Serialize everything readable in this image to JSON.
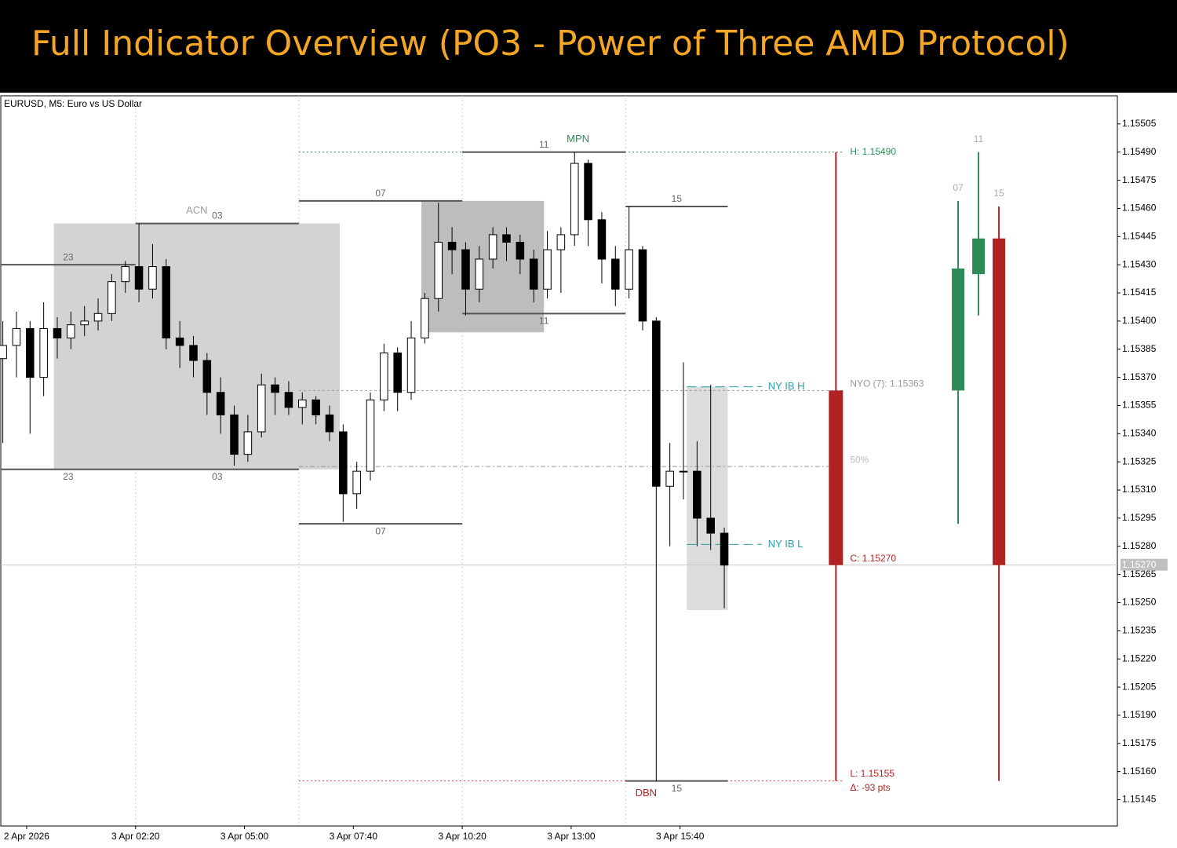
{
  "header": {
    "title": "Full Indicator Overview (PO3 - Power of Three AMD Protocol)"
  },
  "chart_data": {
    "type": "candlestick",
    "title": "EURUSD, M5:  Euro vs US Dollar",
    "x": [
      -39,
      -35,
      -31,
      -27,
      -23,
      -19,
      -15,
      -11,
      -7,
      -3,
      1,
      5,
      9,
      13,
      17,
      21,
      25,
      29,
      33,
      37,
      41,
      45,
      49,
      53,
      57,
      61,
      65,
      69,
      73,
      77,
      81,
      85,
      89,
      93,
      97,
      101,
      105,
      109,
      113,
      117,
      121,
      125,
      129,
      133,
      137,
      141,
      145,
      149,
      153,
      157,
      161,
      165,
      169,
      173
    ],
    "open": [
      1.1538,
      1.15387,
      1.15396,
      1.1537,
      1.15396,
      1.15391,
      1.15398,
      1.154,
      1.15404,
      1.15421,
      1.15429,
      1.15417,
      1.15429,
      1.15391,
      1.15387,
      1.15379,
      1.15362,
      1.1535,
      1.15329,
      1.15341,
      1.15366,
      1.15362,
      1.15354,
      1.15358,
      1.1535,
      1.15341,
      1.15308,
      1.1532,
      1.15358,
      1.15383,
      1.15362,
      1.15391,
      1.15412,
      1.15442,
      1.15438,
      1.15417,
      1.15433,
      1.15446,
      1.15442,
      1.15433,
      1.15417,
      1.15438,
      1.15446,
      1.15484,
      1.15454,
      1.15433,
      1.15417,
      1.15438,
      1.154,
      1.15312,
      1.1532,
      1.1532,
      1.15295,
      1.15287
    ],
    "high": [
      1.154,
      1.15405,
      1.154,
      1.1541,
      1.15402,
      1.15405,
      1.15408,
      1.15412,
      1.15425,
      1.15432,
      1.15452,
      1.15441,
      1.15433,
      1.154,
      1.15392,
      1.15383,
      1.1537,
      1.15355,
      1.1535,
      1.15372,
      1.1537,
      1.15368,
      1.15362,
      1.1536,
      1.15355,
      1.15345,
      1.15325,
      1.15362,
      1.15388,
      1.15386,
      1.154,
      1.15415,
      1.15463,
      1.1545,
      1.15442,
      1.1544,
      1.1545,
      1.1545,
      1.15446,
      1.15438,
      1.15448,
      1.1545,
      1.1549,
      1.15486,
      1.15458,
      1.1544,
      1.15461,
      1.1544,
      1.15402,
      1.15335,
      1.15378,
      1.15336,
      1.15366,
      1.1529
    ],
    "low": [
      1.15335,
      1.1537,
      1.1534,
      1.1536,
      1.1538,
      1.15385,
      1.15392,
      1.15395,
      1.154,
      1.15415,
      1.1541,
      1.15412,
      1.15385,
      1.15375,
      1.1537,
      1.1535,
      1.1534,
      1.15323,
      1.15325,
      1.15338,
      1.1535,
      1.1535,
      1.15345,
      1.15345,
      1.15336,
      1.15293,
      1.153,
      1.15315,
      1.15352,
      1.15352,
      1.15358,
      1.15388,
      1.15405,
      1.15425,
      1.15403,
      1.1541,
      1.15428,
      1.15432,
      1.15425,
      1.1541,
      1.15412,
      1.15415,
      1.1544,
      1.1544,
      1.1542,
      1.15408,
      1.15412,
      1.15395,
      1.15155,
      1.1528,
      1.15305,
      1.1528,
      1.15278,
      1.15247
    ],
    "close": [
      1.15387,
      1.15396,
      1.1537,
      1.15396,
      1.15391,
      1.15398,
      1.154,
      1.15404,
      1.15421,
      1.15429,
      1.15417,
      1.15429,
      1.15391,
      1.15387,
      1.15379,
      1.15362,
      1.1535,
      1.15329,
      1.15341,
      1.15366,
      1.15362,
      1.15354,
      1.15358,
      1.1535,
      1.15341,
      1.15308,
      1.1532,
      1.15358,
      1.15383,
      1.15362,
      1.15391,
      1.15412,
      1.15442,
      1.15438,
      1.15417,
      1.15433,
      1.15446,
      1.15442,
      1.15433,
      1.15417,
      1.15438,
      1.15446,
      1.15484,
      1.15454,
      1.15433,
      1.15417,
      1.15438,
      1.154,
      1.15312,
      1.1532,
      1.1532,
      1.15295,
      1.15287,
      1.1527
    ],
    "up_color": "#ffffff",
    "down_color": "#000000",
    "xlim": [
      -39.6,
      288.5
    ],
    "xticks": [
      {
        "value": -32,
        "label": "2 Apr 2026"
      },
      {
        "value": 0,
        "label": "3 Apr 02:20"
      },
      {
        "value": 32,
        "label": "3 Apr 05:00"
      },
      {
        "value": 64,
        "label": "3 Apr 07:40"
      },
      {
        "value": 96,
        "label": "3 Apr 10:20"
      },
      {
        "value": 128,
        "label": "3 Apr 13:00"
      },
      {
        "value": 160,
        "label": "3 Apr 15:40"
      }
    ],
    "ylim": [
      1.15131,
      1.1552
    ],
    "yticks": [
      1.15505,
      {
        "value": 1.1549,
        "label": "1.15490"
      },
      1.15475,
      {
        "value": 1.1546,
        "label": "1.15460"
      },
      1.15445,
      {
        "value": 1.1543,
        "label": "1.15430"
      },
      1.15415,
      {
        "value": 1.154,
        "label": "1.15400"
      },
      1.15385,
      {
        "value": 1.1537,
        "label": "1.15370"
      },
      1.15355,
      {
        "value": 1.1534,
        "label": "1.15340"
      },
      1.15325,
      {
        "value": 1.1531,
        "label": "1.15310"
      },
      1.15295,
      {
        "value": 1.1528,
        "label": "1.15280"
      },
      1.15265,
      {
        "value": 1.1525,
        "label": "1.15250"
      },
      1.15235,
      {
        "value": 1.1522,
        "label": "1.15220"
      },
      1.15205,
      {
        "value": 1.1519,
        "label": "1.15190"
      },
      1.15175,
      {
        "value": 1.1516,
        "label": "1.15160"
      },
      1.15145
    ],
    "session_lines": [
      0,
      48,
      96,
      144
    ],
    "boxes": [
      {
        "x": [
          -24,
          60
        ],
        "y": [
          1.15321,
          1.15452
        ],
        "color": "#d3d3d3"
      },
      {
        "x": [
          84,
          120
        ],
        "y": [
          1.15394,
          1.15464
        ],
        "color": "#bdbdbd"
      },
      {
        "x": [
          162,
          174
        ],
        "y": [
          1.15246,
          1.15365
        ],
        "color": "#dcdcdc"
      }
    ],
    "levels": [
      {
        "label": "23",
        "value": 1.1543,
        "x": [
          -39.6,
          0
        ],
        "side": "high"
      },
      {
        "label": "23",
        "value": 1.15321,
        "x": [
          -39.6,
          0
        ],
        "side": "low"
      },
      {
        "label": "03",
        "value": 1.15452,
        "x": [
          0,
          48
        ],
        "side": "high"
      },
      {
        "label": "03",
        "value": 1.15321,
        "x": [
          0,
          48
        ],
        "side": "low"
      },
      {
        "label": "07",
        "value": 1.15464,
        "x": [
          48,
          96
        ],
        "side": "high"
      },
      {
        "label": "07",
        "value": 1.15292,
        "x": [
          48,
          96
        ],
        "side": "low"
      },
      {
        "label": "11",
        "value": 1.1549,
        "x": [
          96,
          144
        ],
        "side": "high"
      },
      {
        "label": "11",
        "value": 1.15404,
        "x": [
          96,
          144
        ],
        "side": "low"
      },
      {
        "label": "15",
        "value": 1.15461,
        "x": [
          144,
          174
        ],
        "side": "high"
      },
      {
        "label": "15",
        "value": 1.15155,
        "x": [
          144,
          174
        ],
        "side": "low"
      }
    ],
    "session_names": [
      {
        "label": "ACN",
        "value": 1.15452,
        "x": 18,
        "color": "#999999"
      },
      {
        "label": "MPN",
        "value": 1.1549,
        "x": 130,
        "color": "#2e8b57"
      },
      {
        "label": "DBN",
        "value": 1.15155,
        "x": 150,
        "color": "#b22222"
      }
    ],
    "ny_ib": {
      "high": 1.15365,
      "low": 1.15281,
      "x": [
        162,
        184
      ],
      "high_label": "NY IB H",
      "low_label": "NY IB L",
      "color": "#2a9fa8"
    },
    "po3": {
      "x": 205.8,
      "open": 1.15363,
      "high": 1.1549,
      "low": 1.15155,
      "close": 1.1527,
      "mid": 1.153225,
      "line_start": 48,
      "high_label": "H: 1.15490",
      "open_label": "NYO (7): 1.15363",
      "mid_label": "50%",
      "close_label": "C: 1.15270",
      "low_label": "L: 1.15155",
      "delta_label": "Δ: -93 pts",
      "up_color": "#2e8b57",
      "down_color": "#b22222"
    },
    "htf_candles": [
      {
        "label": "07",
        "x": 241.7,
        "open": 1.15363,
        "high": 1.15464,
        "low": 1.15292,
        "close": 1.15428
      },
      {
        "label": "11",
        "x": 247.7,
        "open": 1.15425,
        "high": 1.1549,
        "low": 1.15403,
        "close": 1.15444
      },
      {
        "label": "15",
        "x": 253.7,
        "open": 1.15444,
        "high": 1.15461,
        "low": 1.15155,
        "close": 1.1527
      }
    ],
    "current_price": {
      "value": 1.1527,
      "label": "1.15270"
    }
  }
}
